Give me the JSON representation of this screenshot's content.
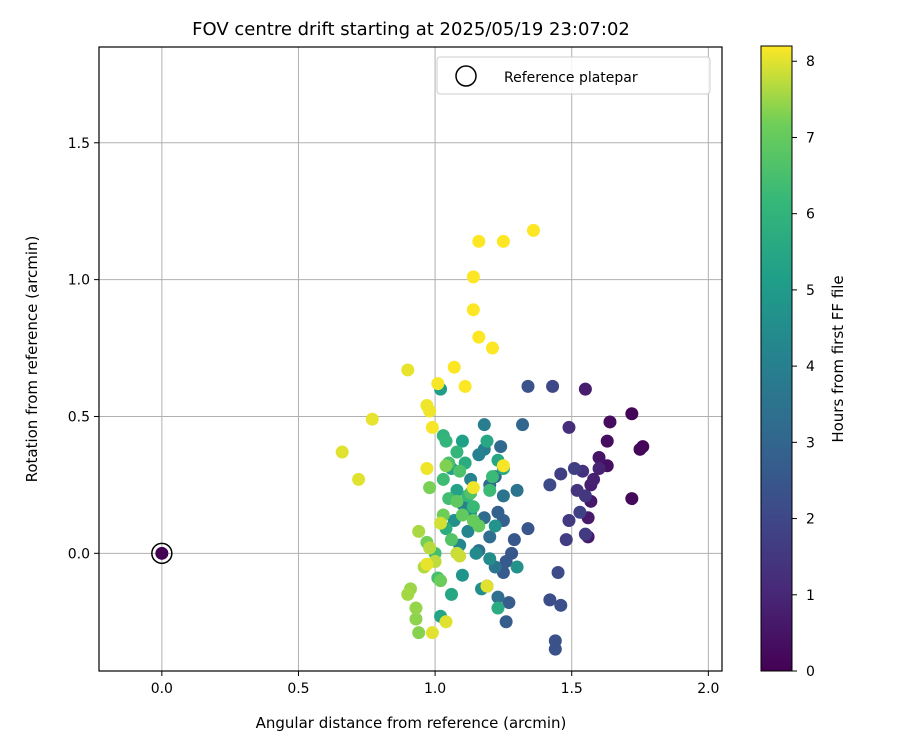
{
  "chart_data": {
    "type": "scatter",
    "title": "FOV centre drift starting at 2025/05/19 23:07:02",
    "xlabel": "Angular distance from reference (arcmin)",
    "ylabel": "Rotation from reference (arcmin)",
    "xlim": [
      -0.23,
      2.05
    ],
    "ylim": [
      -0.43,
      1.85
    ],
    "xticks": [
      0.0,
      0.5,
      1.0,
      1.5,
      2.0
    ],
    "xtick_labels": [
      "0.0",
      "0.5",
      "1.0",
      "1.5",
      "2.0"
    ],
    "yticks": [
      0.0,
      0.5,
      1.0,
      1.5
    ],
    "ytick_labels": [
      "0.0",
      "0.5",
      "1.0",
      "1.5"
    ],
    "grid": true,
    "legend": {
      "position": "top-right",
      "entries": [
        "Reference platepar"
      ]
    },
    "reference_point": {
      "x": 0.0,
      "y": 0.0,
      "hours": 0
    },
    "colorbar": {
      "label": "Hours from first FF file",
      "range": [
        0,
        8.2
      ],
      "ticks": [
        0,
        1,
        2,
        3,
        4,
        5,
        6,
        7,
        8
      ],
      "tick_labels": [
        "0",
        "1",
        "2",
        "3",
        "4",
        "5",
        "6",
        "7",
        "8"
      ],
      "colormap": "viridis"
    },
    "points": [
      [
        1.72,
        0.51,
        0.1
      ],
      [
        1.76,
        0.39,
        0.1
      ],
      [
        1.75,
        0.38,
        0.15
      ],
      [
        1.72,
        0.2,
        0.2
      ],
      [
        1.64,
        0.48,
        0.3
      ],
      [
        1.63,
        0.41,
        0.35
      ],
      [
        1.63,
        0.32,
        0.4
      ],
      [
        1.6,
        0.35,
        0.5
      ],
      [
        1.57,
        0.19,
        0.6
      ],
      [
        1.56,
        0.13,
        0.65
      ],
      [
        1.56,
        0.06,
        0.7
      ],
      [
        1.55,
        0.6,
        0.75
      ],
      [
        1.57,
        0.25,
        0.8
      ],
      [
        1.58,
        0.27,
        0.85
      ],
      [
        1.6,
        0.31,
        0.9
      ],
      [
        1.49,
        0.46,
        1.2
      ],
      [
        1.54,
        0.3,
        1.3
      ],
      [
        1.52,
        0.23,
        1.4
      ],
      [
        1.55,
        0.21,
        1.5
      ],
      [
        1.49,
        0.12,
        1.55
      ],
      [
        1.55,
        0.07,
        1.6
      ],
      [
        1.48,
        0.05,
        1.65
      ],
      [
        1.46,
        0.29,
        1.7
      ],
      [
        1.51,
        0.31,
        1.75
      ],
      [
        1.53,
        0.15,
        1.8
      ],
      [
        1.43,
        0.61,
        2.0
      ],
      [
        1.42,
        0.25,
        2.1
      ],
      [
        1.45,
        -0.07,
        2.15
      ],
      [
        1.42,
        -0.17,
        2.2
      ],
      [
        1.46,
        -0.19,
        2.25
      ],
      [
        1.44,
        -0.32,
        2.3
      ],
      [
        1.44,
        -0.35,
        2.35
      ],
      [
        1.34,
        0.61,
        2.4
      ],
      [
        1.34,
        0.09,
        2.45
      ],
      [
        1.29,
        0.05,
        2.5
      ],
      [
        1.28,
        0.0,
        2.55
      ],
      [
        1.26,
        -0.03,
        2.6
      ],
      [
        1.25,
        -0.07,
        2.65
      ],
      [
        1.27,
        -0.18,
        2.7
      ],
      [
        1.26,
        -0.25,
        2.75
      ],
      [
        1.23,
        0.15,
        2.8
      ],
      [
        1.25,
        0.12,
        2.85
      ],
      [
        1.32,
        0.47,
        3.0
      ],
      [
        1.24,
        0.39,
        3.1
      ],
      [
        1.22,
        0.28,
        3.15
      ],
      [
        1.2,
        0.25,
        3.2
      ],
      [
        1.18,
        0.13,
        3.25
      ],
      [
        1.2,
        0.06,
        3.3
      ],
      [
        1.16,
        0.01,
        3.35
      ],
      [
        1.23,
        -0.16,
        3.4
      ],
      [
        1.19,
        -0.12,
        3.45
      ],
      [
        1.3,
        0.23,
        3.5
      ],
      [
        1.25,
        0.21,
        3.55
      ],
      [
        1.22,
        -0.05,
        3.6
      ],
      [
        1.18,
        0.47,
        3.9
      ],
      [
        1.18,
        0.38,
        4.0
      ],
      [
        1.16,
        0.36,
        4.05
      ],
      [
        1.13,
        0.27,
        4.1
      ],
      [
        1.1,
        0.18,
        4.15
      ],
      [
        1.12,
        0.08,
        4.2
      ],
      [
        1.09,
        0.03,
        4.3
      ],
      [
        1.15,
        0.0,
        4.4
      ],
      [
        1.2,
        -0.02,
        4.5
      ],
      [
        1.17,
        -0.13,
        4.55
      ],
      [
        1.13,
        0.15,
        4.6
      ],
      [
        1.07,
        0.12,
        4.65
      ],
      [
        1.3,
        -0.05,
        4.7
      ],
      [
        1.22,
        0.1,
        4.75
      ],
      [
        1.1,
        -0.08,
        4.8
      ],
      [
        1.02,
        0.6,
        5.1
      ],
      [
        1.1,
        0.41,
        5.2
      ],
      [
        1.06,
        0.31,
        5.25
      ],
      [
        1.08,
        0.23,
        5.3
      ],
      [
        1.02,
        -0.23,
        5.4
      ],
      [
        1.06,
        -0.15,
        5.45
      ],
      [
        1.19,
        0.41,
        5.5
      ],
      [
        1.23,
        0.34,
        5.55
      ],
      [
        1.25,
        0.31,
        5.6
      ],
      [
        1.23,
        -0.2,
        5.65
      ],
      [
        1.11,
        0.33,
        5.7
      ],
      [
        1.04,
        0.09,
        5.75
      ],
      [
        1.03,
        0.43,
        6.0
      ],
      [
        1.04,
        0.41,
        6.05
      ],
      [
        1.08,
        0.37,
        6.1
      ],
      [
        1.12,
        0.21,
        6.15
      ],
      [
        1.14,
        0.17,
        6.2
      ],
      [
        1.21,
        0.28,
        6.25
      ],
      [
        1.2,
        0.23,
        6.3
      ],
      [
        1.03,
        0.27,
        6.35
      ],
      [
        1.05,
        0.2,
        6.4
      ],
      [
        1.0,
        0.0,
        6.45
      ],
      [
        1.01,
        -0.09,
        6.5
      ],
      [
        1.05,
        0.33,
        6.55
      ],
      [
        1.09,
        0.3,
        6.6
      ],
      [
        1.13,
        0.22,
        6.65
      ],
      [
        1.06,
        0.05,
        6.7
      ],
      [
        1.08,
        0.19,
        6.9
      ],
      [
        1.1,
        0.14,
        6.95
      ],
      [
        1.16,
        0.1,
        7.0
      ],
      [
        1.14,
        0.12,
        7.05
      ],
      [
        1.02,
        -0.1,
        7.1
      ],
      [
        1.03,
        0.14,
        7.15
      ],
      [
        0.97,
        0.04,
        7.2
      ],
      [
        0.98,
        0.24,
        7.25
      ],
      [
        1.04,
        0.32,
        7.3
      ],
      [
        0.94,
        -0.29,
        7.35
      ],
      [
        0.93,
        -0.24,
        7.4
      ],
      [
        0.93,
        -0.2,
        7.45
      ],
      [
        0.91,
        -0.13,
        7.5
      ],
      [
        0.9,
        -0.15,
        7.55
      ],
      [
        0.94,
        0.08,
        7.6
      ],
      [
        0.96,
        -0.05,
        7.65
      ],
      [
        0.98,
        0.02,
        7.7
      ],
      [
        1.0,
        -0.03,
        7.75
      ],
      [
        1.08,
        0.0,
        7.8
      ],
      [
        1.09,
        -0.01,
        7.85
      ],
      [
        1.02,
        0.11,
        7.9
      ],
      [
        0.66,
        0.37,
        8.0
      ],
      [
        0.72,
        0.27,
        8.0
      ],
      [
        0.77,
        0.49,
        8.05
      ],
      [
        0.9,
        0.67,
        8.05
      ],
      [
        0.97,
        0.54,
        8.1
      ],
      [
        0.98,
        0.52,
        8.1
      ],
      [
        0.99,
        0.46,
        8.15
      ],
      [
        1.01,
        0.62,
        8.15
      ],
      [
        1.07,
        0.68,
        8.2
      ],
      [
        1.11,
        0.61,
        8.2
      ],
      [
        1.21,
        0.75,
        8.2
      ],
      [
        1.16,
        0.79,
        8.2
      ],
      [
        1.14,
        0.89,
        8.2
      ],
      [
        1.14,
        1.01,
        8.2
      ],
      [
        1.16,
        1.14,
        8.2
      ],
      [
        1.25,
        1.14,
        8.2
      ],
      [
        1.36,
        1.18,
        8.2
      ],
      [
        1.25,
        0.32,
        8.15
      ],
      [
        1.14,
        0.24,
        8.1
      ],
      [
        0.97,
        0.31,
        8.1
      ],
      [
        0.97,
        -0.04,
        8.05
      ],
      [
        1.19,
        -0.12,
        8.0
      ],
      [
        0.99,
        -0.29,
        8.0
      ],
      [
        1.04,
        -0.25,
        8.0
      ]
    ]
  }
}
